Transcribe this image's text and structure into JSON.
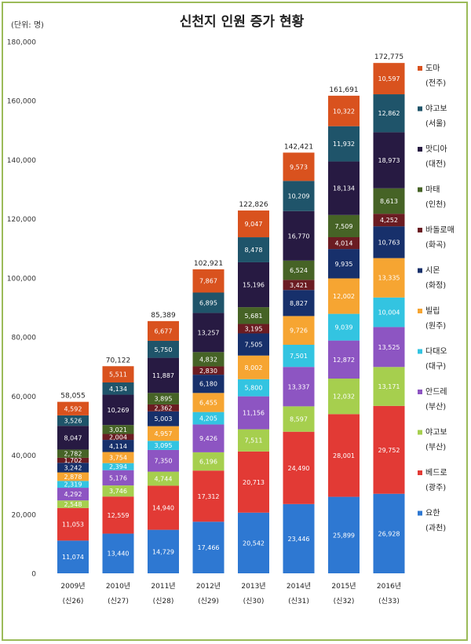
{
  "chart_data": {
    "type": "bar",
    "stacked": true,
    "title": "신천지 인원 증가 현황",
    "unit_label": "(단위: 명)",
    "ylim": [
      0,
      180000
    ],
    "y_ticks": [
      "0",
      "20,000",
      "40,000",
      "60,000",
      "80,000",
      "100,000",
      "120,000",
      "140,000",
      "160,000",
      "180,000"
    ],
    "y_tick_values": [
      0,
      20000,
      40000,
      60000,
      80000,
      100000,
      120000,
      140000,
      160000,
      180000
    ],
    "categories": [
      "2009년",
      "2010년",
      "2011년",
      "2012년",
      "2013년",
      "2014년",
      "2015년",
      "2016년"
    ],
    "subcategories": [
      "(신26)",
      "(신27)",
      "(신28)",
      "(신29)",
      "(신30)",
      "(신31)",
      "(신32)",
      "(신33)"
    ],
    "totals": [
      58055,
      70122,
      85389,
      102921,
      122826,
      142421,
      161691,
      172775
    ],
    "total_labels": [
      "58,055",
      "70,122",
      "85,389",
      "102,921",
      "122,826",
      "142,421",
      "161,691",
      "172,775"
    ],
    "legend_position": "right",
    "grid": false,
    "series": [
      {
        "name": "요한",
        "sub": "(과천)",
        "color": "#2e78d2",
        "values": [
          11074,
          13440,
          14729,
          17466,
          20542,
          23446,
          25899,
          26928
        ],
        "labels": [
          "11,074",
          "13,440",
          "14,729",
          "17,466",
          "20,542",
          "23,446",
          "25,899",
          "26,928"
        ]
      },
      {
        "name": "베드로",
        "sub": "(광주)",
        "color": "#e23a35",
        "values": [
          11053,
          12559,
          14940,
          17312,
          20713,
          24490,
          28001,
          29752
        ],
        "labels": [
          "11,053",
          "12,559",
          "14,940",
          "17,312",
          "20,713",
          "24,490",
          "28,001",
          "29,752"
        ]
      },
      {
        "name": "야고보",
        "sub": "(부산)",
        "color": "#a6cf4e",
        "values": [
          2548,
          3746,
          4744,
          6196,
          7511,
          8597,
          12032,
          13171
        ],
        "labels": [
          "2,548",
          "3,746",
          "4,744",
          "6,196",
          "7,511",
          "8,597",
          "12,032",
          "13,171"
        ]
      },
      {
        "name": "안드레",
        "sub": "(부산)",
        "color": "#8d55c2",
        "values": [
          4292,
          5176,
          7350,
          9426,
          11156,
          13337,
          12872,
          13525
        ],
        "labels": [
          "4,292",
          "5,176",
          "7,350",
          "9,426",
          "11,156",
          "13,337",
          "12,872",
          "13,525"
        ]
      },
      {
        "name": "다대오",
        "sub": "(대구)",
        "color": "#33c4e1",
        "values": [
          2319,
          2394,
          3095,
          4205,
          5800,
          7501,
          9039,
          10004
        ],
        "labels": [
          "2,319",
          "2,394",
          "3,095",
          "4,205",
          "5,800",
          "7,501",
          "9,039",
          "10,004"
        ]
      },
      {
        "name": "빌립",
        "sub": "(원주)",
        "color": "#f6a532",
        "values": [
          2878,
          3754,
          4957,
          6455,
          8002,
          9726,
          12002,
          13335
        ],
        "labels": [
          "2,878",
          "3,754",
          "4,957",
          "6,455",
          "8,002",
          "9,726",
          "12,002",
          "13,335"
        ]
      },
      {
        "name": "시몬",
        "sub": "(화정)",
        "color": "#17306b",
        "values": [
          3242,
          4114,
          5003,
          6180,
          7505,
          8827,
          9935,
          10763
        ],
        "labels": [
          "3,242",
          "4,114",
          "5,003",
          "6,180",
          "7,505",
          "8,827",
          "9,935",
          "10,763"
        ]
      },
      {
        "name": "바돌로매",
        "sub": "(화곡)",
        "color": "#6b1c22",
        "values": [
          1702,
          2004,
          2362,
          2830,
          3195,
          3421,
          4014,
          4252
        ],
        "labels": [
          "1,702",
          "2,004",
          "2,362",
          "2,830",
          "3,195",
          "3,421",
          "4,014",
          "4,252"
        ]
      },
      {
        "name": "마태",
        "sub": "(인천)",
        "color": "#466326",
        "values": [
          2782,
          3021,
          3895,
          4832,
          5681,
          6524,
          7509,
          8613
        ],
        "labels": [
          "2,782",
          "3,021",
          "3,895",
          "4,832",
          "5,681",
          "6,524",
          "7,509",
          "8,613"
        ]
      },
      {
        "name": "맛디아",
        "sub": "(대전)",
        "color": "#271a42",
        "values": [
          8047,
          10269,
          11887,
          13257,
          15196,
          16770,
          18134,
          18973
        ],
        "labels": [
          "8,047",
          "10,269",
          "11,887",
          "13,257",
          "15,196",
          "16,770",
          "18,134",
          "18,973"
        ]
      },
      {
        "name": "야고보",
        "sub": "(서울)",
        "color": "#1f546a",
        "values": [
          3526,
          4134,
          5750,
          6895,
          8478,
          10209,
          11932,
          12862
        ],
        "labels": [
          "3,526",
          "4,134",
          "5,750",
          "6,895",
          "8,478",
          "10,209",
          "11,932",
          "12,862"
        ]
      },
      {
        "name": "도마",
        "sub": "(전주)",
        "color": "#d9521e",
        "values": [
          4592,
          5511,
          6677,
          7867,
          9047,
          9573,
          10322,
          10597
        ],
        "labels": [
          "4,592",
          "5,511",
          "6,677",
          "7,867",
          "9,047",
          "9,573",
          "10,322",
          "10,597"
        ]
      }
    ]
  }
}
